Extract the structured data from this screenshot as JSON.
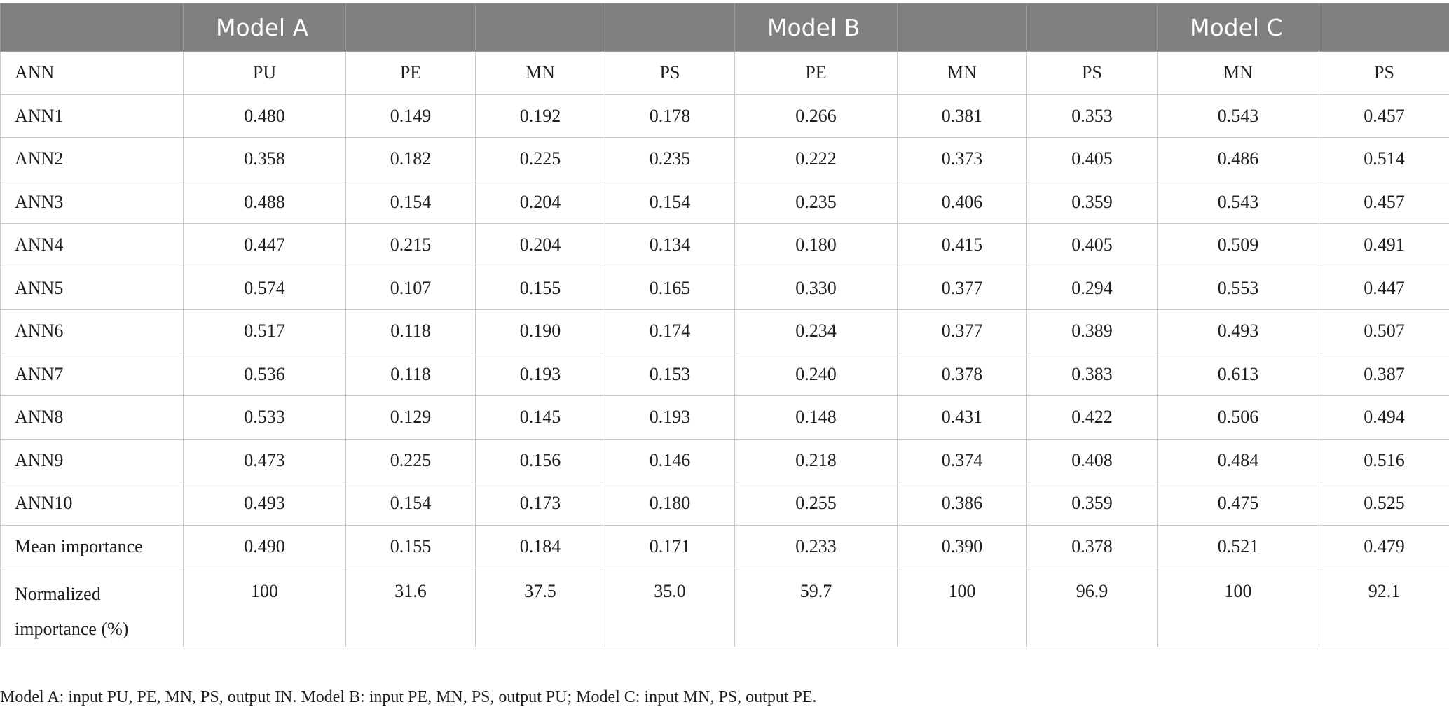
{
  "table": {
    "groups": [
      "",
      "Model A",
      "",
      "",
      "",
      "Model B",
      "",
      "",
      "Model C",
      ""
    ],
    "columns": [
      "ANN",
      "PU",
      "PE",
      "MN",
      "PS",
      "PE",
      "MN",
      "PS",
      "MN",
      "PS"
    ],
    "rows": [
      {
        "label": "ANN1",
        "values": [
          "0.480",
          "0.149",
          "0.192",
          "0.178",
          "0.266",
          "0.381",
          "0.353",
          "0.543",
          "0.457"
        ]
      },
      {
        "label": "ANN2",
        "values": [
          "0.358",
          "0.182",
          "0.225",
          "0.235",
          "0.222",
          "0.373",
          "0.405",
          "0.486",
          "0.514"
        ]
      },
      {
        "label": "ANN3",
        "values": [
          "0.488",
          "0.154",
          "0.204",
          "0.154",
          "0.235",
          "0.406",
          "0.359",
          "0.543",
          "0.457"
        ]
      },
      {
        "label": "ANN4",
        "values": [
          "0.447",
          "0.215",
          "0.204",
          "0.134",
          "0.180",
          "0.415",
          "0.405",
          "0.509",
          "0.491"
        ]
      },
      {
        "label": "ANN5",
        "values": [
          "0.574",
          "0.107",
          "0.155",
          "0.165",
          "0.330",
          "0.377",
          "0.294",
          "0.553",
          "0.447"
        ]
      },
      {
        "label": "ANN6",
        "values": [
          "0.517",
          "0.118",
          "0.190",
          "0.174",
          "0.234",
          "0.377",
          "0.389",
          "0.493",
          "0.507"
        ]
      },
      {
        "label": "ANN7",
        "values": [
          "0.536",
          "0.118",
          "0.193",
          "0.153",
          "0.240",
          "0.378",
          "0.383",
          "0.613",
          "0.387"
        ]
      },
      {
        "label": "ANN8",
        "values": [
          "0.533",
          "0.129",
          "0.145",
          "0.193",
          "0.148",
          "0.431",
          "0.422",
          "0.506",
          "0.494"
        ]
      },
      {
        "label": "ANN9",
        "values": [
          "0.473",
          "0.225",
          "0.156",
          "0.146",
          "0.218",
          "0.374",
          "0.408",
          "0.484",
          "0.516"
        ]
      },
      {
        "label": "ANN10",
        "values": [
          "0.493",
          "0.154",
          "0.173",
          "0.180",
          "0.255",
          "0.386",
          "0.359",
          "0.475",
          "0.525"
        ]
      },
      {
        "label": "Mean importance",
        "values": [
          "0.490",
          "0.155",
          "0.184",
          "0.171",
          "0.233",
          "0.390",
          "0.378",
          "0.521",
          "0.479"
        ]
      },
      {
        "label": "Normalized importance (%)",
        "values": [
          "100",
          "31.6",
          "37.5",
          "35.0",
          "59.7",
          "100",
          "96.9",
          "100",
          "92.1"
        ]
      }
    ]
  },
  "footnote": "Model A: input PU, PE, MN, PS, output IN. Model B: input PE, MN, PS, output PU; Model C: input MN, PS, output PE."
}
